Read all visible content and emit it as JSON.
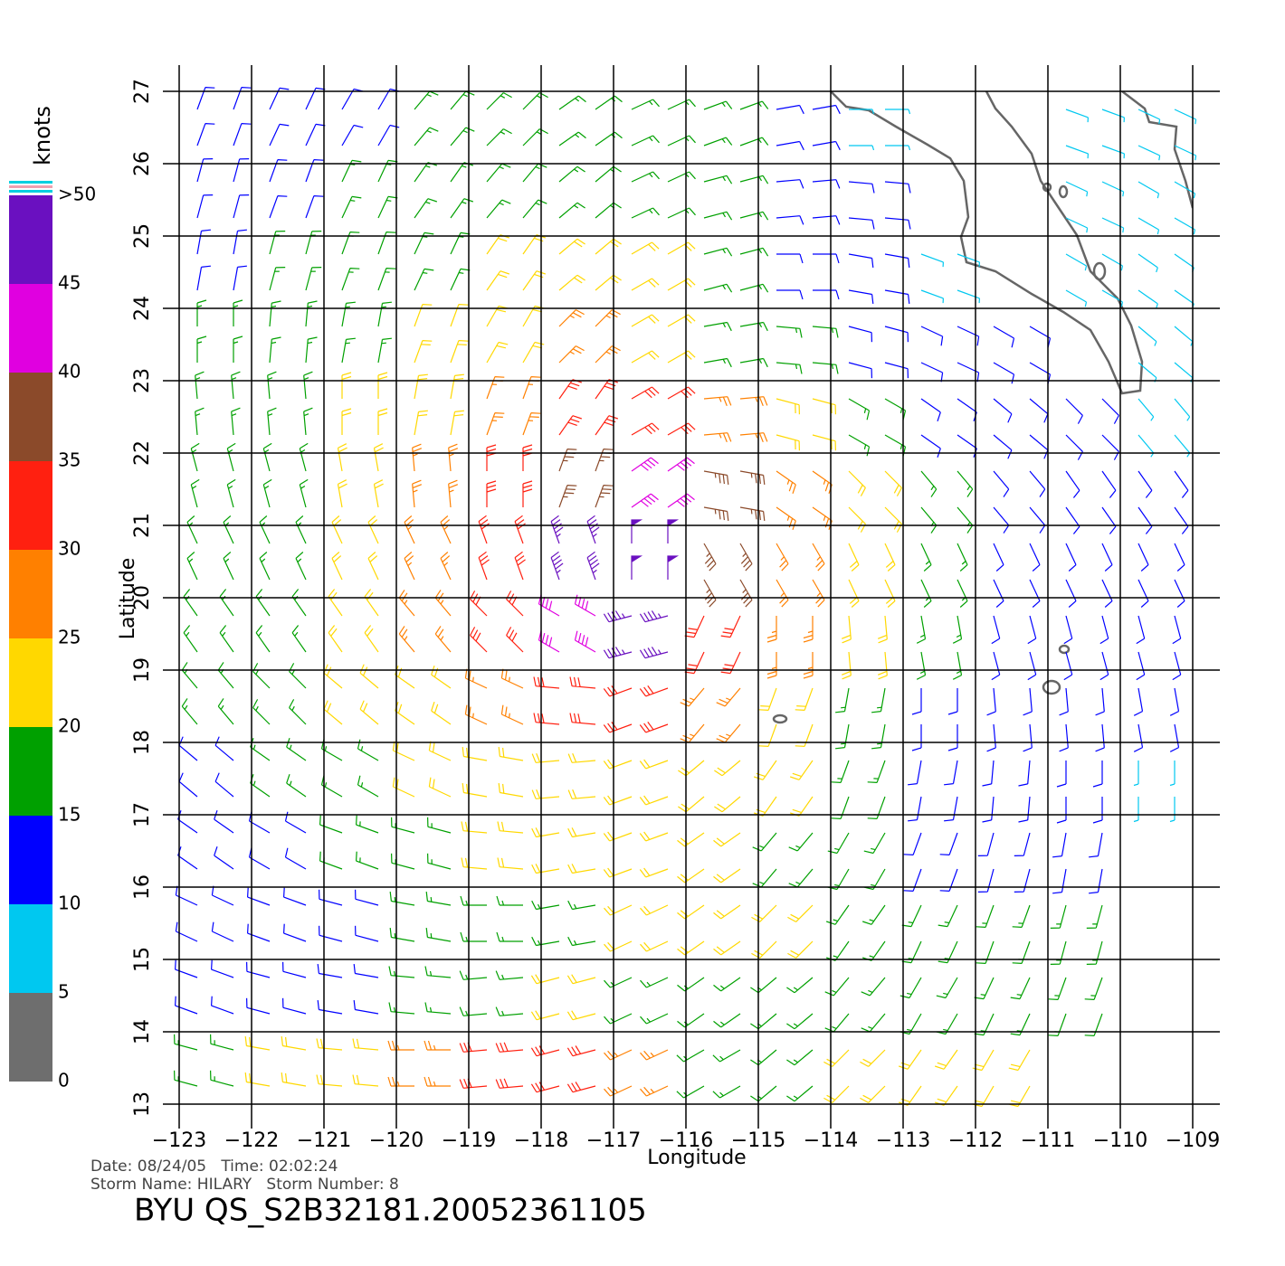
{
  "chart_data": {
    "type": "wind-barb",
    "xlabel": "Longitude",
    "ylabel": "Latitude",
    "xlim": [
      -123,
      -109
    ],
    "ylim": [
      13,
      27
    ],
    "xticks": [
      {
        "value": -123,
        "label": "−123"
      },
      {
        "value": -122,
        "label": "−122"
      },
      {
        "value": -121,
        "label": "−121"
      },
      {
        "value": -120,
        "label": "−120"
      },
      {
        "value": -119,
        "label": "−119"
      },
      {
        "value": -118,
        "label": "−118"
      },
      {
        "value": -117,
        "label": "−117"
      },
      {
        "value": -116,
        "label": "−116"
      },
      {
        "value": -115,
        "label": "−115"
      },
      {
        "value": -114,
        "label": "−114"
      },
      {
        "value": -113,
        "label": "−113"
      },
      {
        "value": -112,
        "label": "−112"
      },
      {
        "value": -111,
        "label": "−111"
      },
      {
        "value": -110,
        "label": "−110"
      },
      {
        "value": -109,
        "label": "−109"
      }
    ],
    "yticks": [
      13,
      14,
      15,
      16,
      17,
      18,
      19,
      20,
      21,
      22,
      23,
      24,
      25,
      26,
      27
    ],
    "grid": true,
    "lon": [
      -122.5,
      -121.5,
      -120.5,
      -119.5,
      -118.5,
      -117.5,
      -116.5,
      -115.5,
      -114.5,
      -113.5,
      -112.5,
      -111.5,
      -110.5,
      -109.5
    ],
    "lat": [
      26.5,
      25.5,
      24.5,
      23.5,
      22.5,
      21.5,
      20.5,
      19.5,
      18.5,
      17.5,
      16.5,
      15.5,
      14.5,
      13.5
    ],
    "speeds": [
      [
        12,
        12,
        14,
        16,
        17,
        17,
        16,
        16,
        12,
        9,
        null,
        null,
        8,
        8
      ],
      [
        12,
        14,
        16,
        17,
        18,
        18,
        17,
        16,
        13,
        10,
        null,
        null,
        8,
        8
      ],
      [
        13,
        16,
        18,
        19,
        21,
        21,
        20,
        17,
        13,
        11,
        9,
        null,
        7,
        7
      ],
      [
        15,
        17,
        19,
        21,
        23,
        25,
        24,
        19,
        15,
        12,
        11,
        10,
        null,
        8
      ],
      [
        16,
        18,
        21,
        24,
        27,
        31,
        31,
        26,
        20,
        16,
        13,
        12,
        11,
        9
      ],
      [
        16,
        19,
        22,
        25,
        30,
        38,
        44,
        36,
        27,
        20,
        15,
        13,
        12,
        10
      ],
      [
        16,
        19,
        23,
        27,
        33,
        46,
        52,
        38,
        28,
        21,
        16,
        13,
        12,
        10
      ],
      [
        16,
        19,
        22,
        26,
        32,
        44,
        46,
        34,
        27,
        20,
        15,
        13,
        12,
        10
      ],
      [
        15,
        18,
        21,
        23,
        27,
        30,
        31,
        28,
        23,
        18,
        14,
        12,
        11,
        10
      ],
      [
        14,
        16,
        19,
        21,
        23,
        24,
        24,
        22,
        20,
        17,
        14,
        12,
        11,
        9
      ],
      [
        13,
        14,
        16,
        18,
        20,
        21,
        21,
        20,
        19,
        17,
        14,
        13,
        12,
        null
      ],
      [
        12,
        13,
        14,
        16,
        17,
        19,
        21,
        21,
        20,
        18,
        17,
        17,
        16,
        null
      ],
      [
        12,
        13,
        14,
        16,
        18,
        20,
        19,
        17,
        17,
        18,
        19,
        18,
        17,
        null
      ],
      [
        17,
        20,
        22,
        26,
        30,
        31,
        26,
        16,
        18,
        20,
        22,
        20,
        null,
        null
      ]
    ],
    "directions": [
      [
        250,
        245,
        240,
        230,
        225,
        215,
        205,
        200,
        190,
        180,
        null,
        null,
        160,
        155
      ],
      [
        255,
        250,
        245,
        235,
        230,
        220,
        205,
        195,
        185,
        175,
        null,
        null,
        155,
        150
      ],
      [
        260,
        255,
        250,
        245,
        235,
        220,
        210,
        195,
        180,
        170,
        160,
        null,
        150,
        145
      ],
      [
        270,
        265,
        260,
        250,
        240,
        225,
        210,
        190,
        175,
        165,
        155,
        150,
        null,
        140
      ],
      [
        275,
        275,
        270,
        260,
        250,
        235,
        210,
        185,
        165,
        150,
        145,
        140,
        135,
        130
      ],
      [
        285,
        285,
        280,
        275,
        270,
        250,
        215,
        170,
        145,
        135,
        130,
        130,
        125,
        125
      ],
      [
        295,
        295,
        295,
        295,
        290,
        290,
        270,
        120,
        120,
        115,
        115,
        115,
        115,
        115
      ],
      [
        305,
        305,
        305,
        310,
        315,
        330,
        15,
        65,
        90,
        95,
        100,
        105,
        105,
        105
      ],
      [
        310,
        315,
        320,
        325,
        335,
        355,
        20,
        50,
        70,
        80,
        90,
        95,
        95,
        100
      ],
      [
        320,
        325,
        330,
        335,
        350,
        5,
        20,
        40,
        55,
        70,
        80,
        85,
        90,
        90
      ],
      [
        325,
        330,
        340,
        345,
        355,
        10,
        20,
        35,
        50,
        60,
        70,
        75,
        80,
        null
      ],
      [
        335,
        340,
        345,
        350,
        0,
        10,
        25,
        35,
        45,
        55,
        65,
        70,
        75,
        null
      ],
      [
        340,
        345,
        350,
        355,
        5,
        15,
        25,
        35,
        40,
        50,
        60,
        65,
        70,
        null
      ],
      [
        345,
        350,
        355,
        0,
        5,
        15,
        25,
        30,
        40,
        45,
        55,
        60,
        null,
        null
      ]
    ],
    "colorbar": {
      "title": "knots",
      "lim": [
        0,
        50
      ],
      "bins": [
        0,
        5,
        10,
        15,
        20,
        25,
        30,
        35,
        40,
        45,
        50
      ],
      "colors": [
        "#6e6e6e",
        "#00c8f0",
        "#0000ff",
        "#00a000",
        "#ffd800",
        "#ff8000",
        "#ff2010",
        "#8b4a2a",
        "#e000e0",
        "#6a10c0"
      ],
      "ticks": [
        0,
        5,
        10,
        15,
        20,
        25,
        30,
        35,
        40,
        45,
        {
          "value": 50,
          "label": ">50"
        }
      ]
    }
  },
  "footer": {
    "date_time": "Date: 08/24/05   Time: 02:02:24",
    "storm": "Storm Name: HILARY   Storm Number: 8",
    "product": "BYU QS_S2B32181.20052361105"
  }
}
